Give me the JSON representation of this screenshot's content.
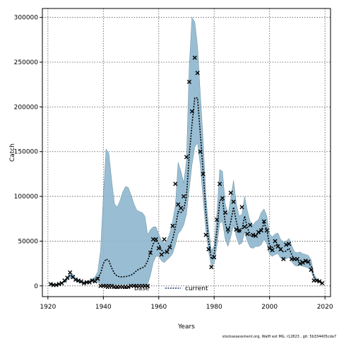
{
  "chart_data": {
    "type": "line",
    "xlabel": "Years",
    "ylabel": "Catch",
    "xlim": [
      1918,
      2022
    ],
    "ylim": [
      -12000,
      310000
    ],
    "x_ticks": [
      1920,
      1940,
      1960,
      1980,
      2000,
      2020
    ],
    "y_ticks": [
      0,
      50000,
      100000,
      150000,
      200000,
      250000,
      300000
    ],
    "grid": true,
    "legend_position": "bottom-center",
    "colors": {
      "band": "#8fb8cf",
      "band_edge": "#5a7f94",
      "current": "#000000",
      "observed": "#000000"
    },
    "legend": {
      "base_label": "base",
      "current_label": "current"
    },
    "series": [
      {
        "name": "current",
        "style": "dotted-line",
        "x": [
          1921,
          1922,
          1923,
          1924,
          1925,
          1926,
          1927,
          1928,
          1929,
          1930,
          1931,
          1932,
          1933,
          1934,
          1935,
          1936,
          1937,
          1938,
          1939,
          1940,
          1941,
          1942,
          1943,
          1944,
          1945,
          1946,
          1947,
          1948,
          1949,
          1950,
          1951,
          1952,
          1953,
          1954,
          1955,
          1956,
          1957,
          1958,
          1959,
          1960,
          1961,
          1962,
          1963,
          1964,
          1965,
          1966,
          1967,
          1968,
          1969,
          1970,
          1971,
          1972,
          1973,
          1974,
          1975,
          1976,
          1977,
          1978,
          1979,
          1980,
          1981,
          1982,
          1983,
          1984,
          1985,
          1986,
          1987,
          1988,
          1989,
          1990,
          1991,
          1992,
          1993,
          1994,
          1995,
          1996,
          1997,
          1998,
          1999,
          2000,
          2001,
          2002,
          2003,
          2004,
          2005,
          2006,
          2007,
          2008,
          2009,
          2010,
          2011,
          2012,
          2013,
          2014,
          2015,
          2016,
          2017,
          2018,
          2019
        ],
        "y": [
          2000,
          1500,
          1200,
          1800,
          3000,
          5000,
          8000,
          12000,
          10000,
          7000,
          5000,
          4000,
          3500,
          4000,
          5000,
          6000,
          7000,
          9000,
          14000,
          25000,
          30000,
          28000,
          20000,
          14000,
          11000,
          10000,
          10000,
          10500,
          11000,
          12000,
          14000,
          17000,
          19000,
          20000,
          22000,
          28000,
          37000,
          47000,
          51000,
          47000,
          40000,
          37000,
          39000,
          44000,
          52000,
          65000,
          83000,
          82000,
          85000,
          100000,
          145000,
          180000,
          210000,
          210000,
          170000,
          130000,
          82000,
          50000,
          30000,
          35000,
          62000,
          95000,
          98000,
          70000,
          60000,
          72000,
          88000,
          72000,
          60000,
          63000,
          78000,
          65000,
          57000,
          55000,
          57000,
          58000,
          62000,
          70000,
          63000,
          45000,
          43000,
          45000,
          47000,
          40000,
          38000,
          39000,
          42000,
          35000,
          29000,
          28000,
          29000,
          27000,
          27000,
          26000,
          22000,
          10000,
          6000,
          5000,
          3000
        ]
      },
      {
        "name": "base",
        "style": "band",
        "x": [
          1921,
          1922,
          1923,
          1924,
          1925,
          1926,
          1927,
          1928,
          1929,
          1930,
          1931,
          1932,
          1933,
          1934,
          1935,
          1936,
          1937,
          1938,
          1939,
          1940,
          1941,
          1942,
          1943,
          1944,
          1945,
          1946,
          1947,
          1948,
          1949,
          1950,
          1951,
          1952,
          1953,
          1954,
          1955,
          1956,
          1957,
          1958,
          1959,
          1960,
          1961,
          1962,
          1963,
          1964,
          1965,
          1966,
          1967,
          1968,
          1969,
          1970,
          1971,
          1972,
          1973,
          1974,
          1975,
          1976,
          1977,
          1978,
          1979,
          1980,
          1981,
          1982,
          1983,
          1984,
          1985,
          1986,
          1987,
          1988,
          1989,
          1990,
          1991,
          1992,
          1993,
          1994,
          1995,
          1996,
          1997,
          1998,
          1999,
          2000,
          2001,
          2002,
          2003,
          2004,
          2005,
          2006,
          2007,
          2008,
          2009,
          2010,
          2011,
          2012,
          2013,
          2014,
          2015,
          2016,
          2017,
          2018,
          2019
        ],
        "lower": [
          1500,
          1000,
          800,
          1200,
          2200,
          4000,
          6500,
          9500,
          8000,
          5500,
          3800,
          3000,
          2500,
          3000,
          3800,
          4500,
          5000,
          4000,
          2500,
          1500,
          1500,
          1500,
          1500,
          1500,
          1500,
          1500,
          1500,
          1500,
          1500,
          1500,
          1500,
          1500,
          1500,
          1500,
          1500,
          2000,
          12000,
          26000,
          33000,
          33000,
          28000,
          26000,
          29000,
          32000,
          36000,
          46000,
          58000,
          62000,
          68000,
          80000,
          108000,
          135000,
          155000,
          160000,
          135000,
          98000,
          62000,
          38000,
          22000,
          25000,
          45000,
          70000,
          72000,
          52000,
          44000,
          55000,
          68000,
          55000,
          46000,
          48000,
          60000,
          50000,
          43000,
          42000,
          44000,
          44000,
          46000,
          52000,
          47000,
          35000,
          33000,
          35000,
          36000,
          31000,
          29000,
          30000,
          32000,
          27000,
          23000,
          22000,
          23000,
          22000,
          21000,
          20000,
          17000,
          7500,
          4500,
          3800,
          2200
        ],
        "upper": [
          2600,
          2000,
          1700,
          2500,
          4000,
          6500,
          10000,
          15000,
          13000,
          9000,
          6500,
          5200,
          4600,
          5300,
          6500,
          8000,
          10000,
          16000,
          40000,
          100000,
          153000,
          148000,
          118000,
          92000,
          88000,
          95000,
          105000,
          111000,
          110000,
          102000,
          92000,
          85000,
          83000,
          82000,
          78000,
          57000,
          63000,
          66000,
          66000,
          58000,
          50000,
          48000,
          51000,
          59000,
          72000,
          90000,
          138000,
          128000,
          115000,
          140000,
          245000,
          300000,
          295000,
          268000,
          215000,
          165000,
          102000,
          64000,
          39000,
          45000,
          82000,
          130000,
          128000,
          92000,
          80000,
          98000,
          118000,
          92000,
          78000,
          80000,
          100000,
          84000,
          72000,
          68000,
          72000,
          74000,
          82000,
          86000,
          78000,
          58000,
          55000,
          58000,
          59000,
          52000,
          49000,
          50000,
          53000,
          45000,
          38000,
          37000,
          38000,
          36000,
          35000,
          34000,
          29000,
          13000,
          8000,
          6500,
          4200
        ]
      },
      {
        "name": "observed",
        "style": "x-marker",
        "x": [
          1921,
          1922,
          1923,
          1924,
          1925,
          1926,
          1927,
          1928,
          1929,
          1930,
          1931,
          1932,
          1933,
          1934,
          1935,
          1936,
          1937,
          1938,
          1939,
          1940,
          1941,
          1942,
          1943,
          1944,
          1945,
          1946,
          1947,
          1948,
          1949,
          1950,
          1951,
          1952,
          1953,
          1954,
          1955,
          1956,
          1957,
          1958,
          1959,
          1960,
          1961,
          1962,
          1963,
          1964,
          1965,
          1966,
          1967,
          1968,
          1969,
          1970,
          1971,
          1972,
          1973,
          1974,
          1975,
          1976,
          1977,
          1978,
          1979,
          1980,
          1981,
          1982,
          1983,
          1984,
          1985,
          1986,
          1987,
          1988,
          1989,
          1990,
          1991,
          1992,
          1993,
          1994,
          1995,
          1996,
          1997,
          1998,
          1999,
          2000,
          2001,
          2002,
          2003,
          2004,
          2005,
          2006,
          2007,
          2008,
          2009,
          2010,
          2011,
          2012,
          2013,
          2014,
          2015,
          2016,
          2017,
          2018,
          2019
        ],
        "y": [
          2000,
          1000,
          1000,
          2000,
          3000,
          6000,
          9000,
          15000,
          10000,
          7000,
          6000,
          5000,
          3000,
          4000,
          4000,
          6000,
          5000,
          8000,
          0,
          0,
          0,
          0,
          0,
          -1000,
          -1000,
          -1000,
          -1000,
          -1000,
          -1000,
          0,
          0,
          0,
          0,
          0,
          0,
          0,
          37000,
          52000,
          52000,
          42000,
          35000,
          52000,
          38000,
          43000,
          67000,
          114000,
          91000,
          87000,
          100000,
          144000,
          228000,
          195000,
          255000,
          238000,
          150000,
          125000,
          57000,
          41000,
          21000,
          32000,
          74000,
          114000,
          98000,
          82000,
          63000,
          104000,
          94000,
          63000,
          62000,
          88000,
          66000,
          58000,
          68000,
          57000,
          56000,
          60000,
          62000,
          72000,
          62000,
          42000,
          40000,
          50000,
          44000,
          41000,
          30000,
          46000,
          47000,
          30000,
          30000,
          30000,
          25000,
          26000,
          28000,
          27000,
          18000,
          6000,
          6000,
          5000,
          3000
        ]
      }
    ]
  },
  "footnote": "stockassessment.org, WalH ext MG, r12823 , git: 5b334405cda7"
}
